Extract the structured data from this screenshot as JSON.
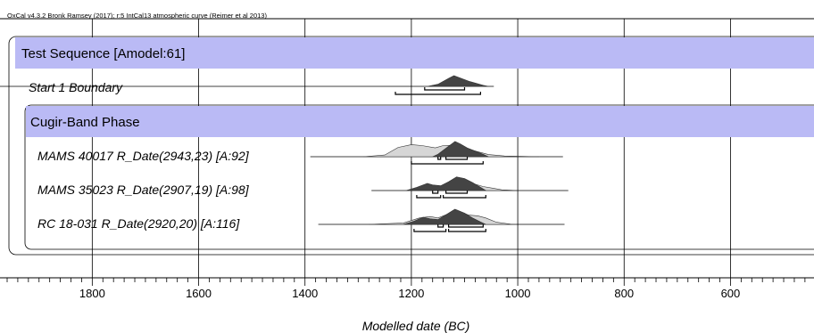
{
  "header_text": "OxCal v4.3.2 Bronk Ramsey (2017); r:5 IntCal13 atmospheric curve (Reimer et al 2013)",
  "chart_data": {
    "type": "oxcal-multiplot",
    "title": "",
    "xlabel": "Modelled date (BC)",
    "x_axis_reversed": true,
    "xlim": [
      1960,
      443
    ],
    "x_ticks": [
      1800,
      1600,
      1400,
      1200,
      1000,
      800,
      600
    ],
    "minor_tick_step": 20,
    "grid": true,
    "sequence": {
      "label": "Test Sequence [Amodel:61]"
    },
    "boundary": {
      "label": "Start 1 Boundary",
      "line": [
        2075,
        1045
      ],
      "posterior_peak": [
        1150,
        1130,
        1065
      ],
      "range_68": [
        [
          1175,
          1100
        ]
      ],
      "range_95": [
        [
          1230,
          1070
        ]
      ]
    },
    "phase": {
      "label": "Cugir-Band Phase"
    },
    "dates": [
      {
        "label": "MAMS 40017 R_Date(2943,23) [A:92]",
        "line": [
          1390,
          915
        ],
        "prior": [
          [
            1290,
            0
          ],
          [
            1250,
            0.12
          ],
          [
            1225,
            0.65
          ],
          [
            1200,
            0.85
          ],
          [
            1180,
            0.78
          ],
          [
            1155,
            0.62
          ],
          [
            1140,
            0.78
          ],
          [
            1125,
            0.8
          ],
          [
            1110,
            0.6
          ],
          [
            1095,
            0.55
          ],
          [
            1075,
            0.35
          ],
          [
            1055,
            0.15
          ],
          [
            1025,
            0.05
          ],
          [
            960,
            0
          ]
        ],
        "posterior": [
          [
            1160,
            0
          ],
          [
            1150,
            0.15
          ],
          [
            1140,
            0.4
          ],
          [
            1128,
            0.7
          ],
          [
            1118,
            0.95
          ],
          [
            1108,
            0.8
          ],
          [
            1095,
            0.55
          ],
          [
            1080,
            0.35
          ],
          [
            1065,
            0.15
          ],
          [
            1055,
            0
          ]
        ],
        "range_68": [
          [
            1150,
            1145
          ],
          [
            1135,
            1095
          ]
        ],
        "range_95": [
          [
            1200,
            1065
          ]
        ]
      },
      {
        "label": "MAMS 35023 R_Date(2907,19) [A:98]",
        "line": [
          1275,
          905
        ],
        "prior": [
          [
            1175,
            0
          ],
          [
            1165,
            0.1
          ],
          [
            1145,
            0.2
          ],
          [
            1125,
            0.5
          ],
          [
            1105,
            0.6
          ],
          [
            1085,
            0.5
          ],
          [
            1065,
            0.28
          ],
          [
            1045,
            0.15
          ],
          [
            1030,
            0.05
          ],
          [
            1000,
            0
          ]
        ],
        "posterior": [
          [
            1210,
            0
          ],
          [
            1190,
            0.2
          ],
          [
            1170,
            0.45
          ],
          [
            1160,
            0.35
          ],
          [
            1145,
            0.3
          ],
          [
            1130,
            0.55
          ],
          [
            1115,
            0.85
          ],
          [
            1100,
            0.75
          ],
          [
            1085,
            0.5
          ],
          [
            1070,
            0.2
          ],
          [
            1060,
            0
          ]
        ],
        "range_68": [
          [
            1160,
            1150
          ],
          [
            1135,
            1095
          ]
        ],
        "range_95": [
          [
            1190,
            1145
          ],
          [
            1140,
            1060
          ]
        ]
      },
      {
        "label": "RC 18-031 R_Date(2920,20) [A:116]",
        "line": [
          1375,
          912
        ],
        "prior": [
          [
            1280,
            0
          ],
          [
            1215,
            0.1
          ],
          [
            1185,
            0.45
          ],
          [
            1165,
            0.55
          ],
          [
            1150,
            0.45
          ],
          [
            1130,
            0.75
          ],
          [
            1112,
            0.95
          ],
          [
            1092,
            0.65
          ],
          [
            1075,
            0.6
          ],
          [
            1060,
            0.45
          ],
          [
            1040,
            0.15
          ],
          [
            1010,
            0
          ]
        ],
        "posterior": [
          [
            1215,
            0
          ],
          [
            1195,
            0.2
          ],
          [
            1178,
            0.45
          ],
          [
            1165,
            0.35
          ],
          [
            1150,
            0.3
          ],
          [
            1135,
            0.6
          ],
          [
            1118,
            0.95
          ],
          [
            1100,
            0.7
          ],
          [
            1085,
            0.4
          ],
          [
            1070,
            0.15
          ],
          [
            1060,
            0
          ]
        ],
        "range_68": [
          [
            1150,
            1140
          ],
          [
            1130,
            1065
          ]
        ],
        "range_95": [
          [
            1195,
            1135
          ],
          [
            1130,
            1060
          ]
        ]
      }
    ]
  }
}
